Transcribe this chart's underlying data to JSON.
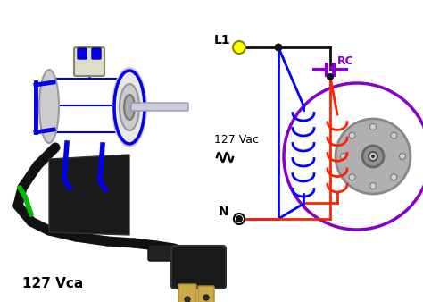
{
  "bg_color": "#ffffff",
  "l1_label": "L1",
  "n_label": "N",
  "rc_label": "RC",
  "vac_label": "127 Vac",
  "vca_label": "127 Vca",
  "l1_dot_color": "#ffff00",
  "n_dot_color": "#ffffff",
  "junction_color": "#111111",
  "wire_black": "#111111",
  "blue_wire": "#0000ff",
  "red_wire": "#ff2200",
  "purple_wire": "#8800cc",
  "circle_motor_color": "#8800cc",
  "rotor_color": "#aaaaaa",
  "rotor_dark": "#777777",
  "coil_blue": "#0000ff",
  "coil_red": "#ff2200",
  "motor_black": "#111111",
  "motor_white": "#dddddd"
}
